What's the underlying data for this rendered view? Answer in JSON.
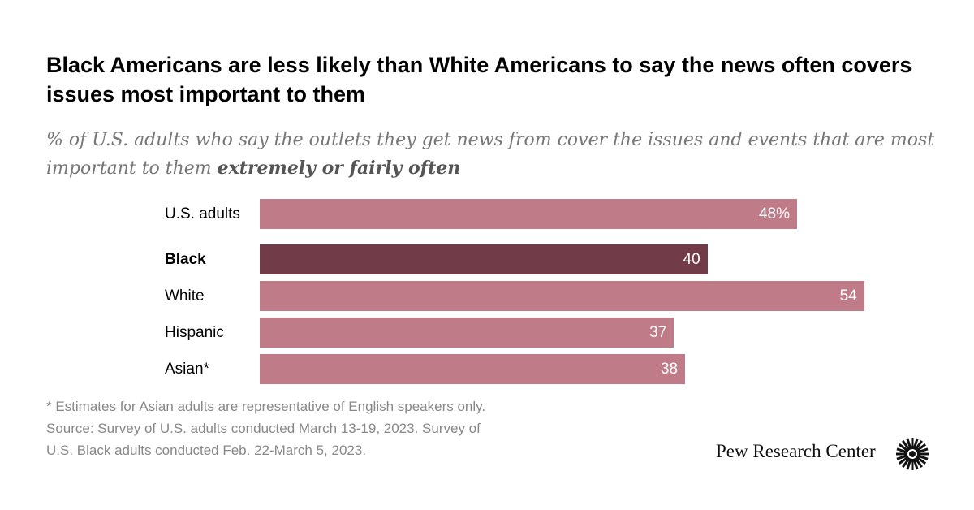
{
  "title": "Black Americans are less likely than White Americans to say the news often covers issues most important to them",
  "subtitle_plain": "% of U.S. adults who say the outlets they get news from cover the issues and events that are most important to them",
  "subtitle_bold": "extremely or fairly often",
  "chart_data": {
    "type": "bar",
    "orientation": "horizontal",
    "categories": [
      "U.S. adults",
      "Black",
      "White",
      "Hispanic",
      "Asian*"
    ],
    "values": [
      48,
      40,
      54,
      37,
      38
    ],
    "value_labels": [
      "48%",
      "40",
      "54",
      "37",
      "38"
    ],
    "highlight": "Black",
    "colors": {
      "default": "#bf7b87",
      "highlight": "#713b48"
    },
    "xlim": [
      0,
      54
    ],
    "grid": false
  },
  "footnote": "* Estimates for Asian adults are representative of English speakers only.",
  "source_line1": "Source: Survey of U.S. adults conducted March 13-19, 2023. Survey of",
  "source_line2": "U.S. Black adults conducted Feb. 22-March 5, 2023.",
  "logo": "Pew Research Center"
}
